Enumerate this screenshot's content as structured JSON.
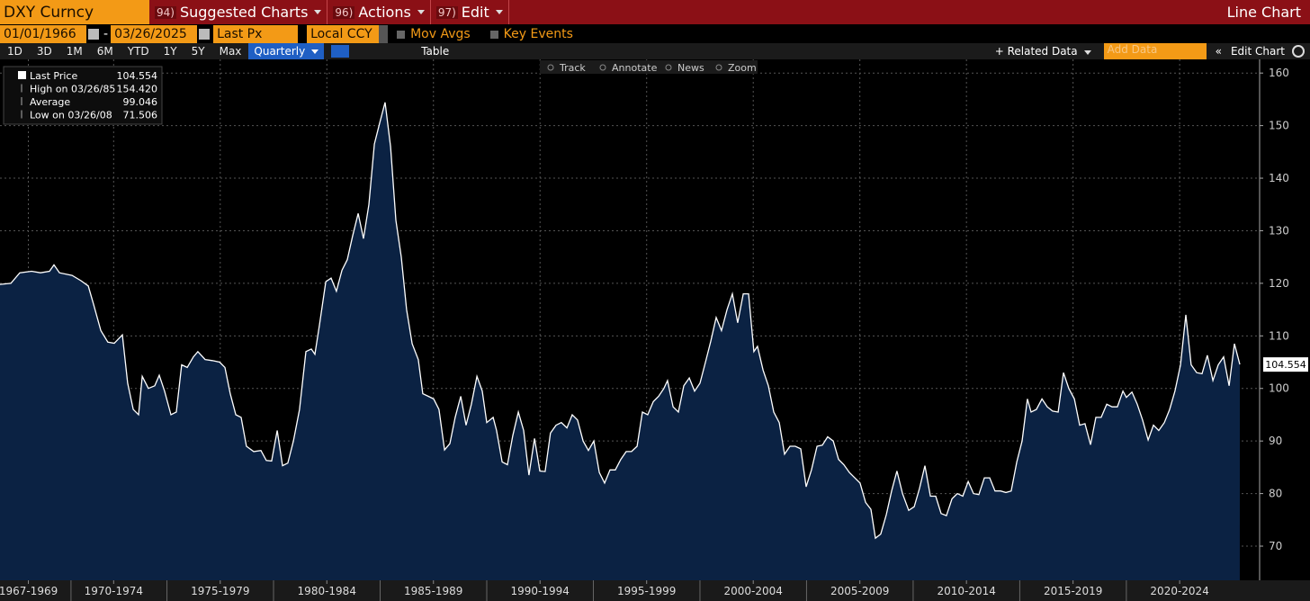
{
  "toolbar": {
    "ticker": "DXY Curncy",
    "menus": [
      {
        "code": "94)",
        "label": "Suggested Charts"
      },
      {
        "code": "96)",
        "label": "Actions"
      },
      {
        "code": "97)",
        "label": "Edit"
      }
    ],
    "view": "Line Chart"
  },
  "controls": {
    "start_date": "01/01/1966",
    "end_date": "03/26/2025",
    "field": "Last Px",
    "currency": "Local CCY",
    "options": [
      "Mov Avgs",
      "Key Events"
    ]
  },
  "periods": [
    "1D",
    "3D",
    "1M",
    "6M",
    "YTD",
    "1Y",
    "5Y",
    "Max"
  ],
  "frequency": "Quarterly",
  "table": "Table",
  "related": "Related Data",
  "add_data": "Add Data",
  "edit_chart": "Edit Chart",
  "tools": [
    "Track",
    "Annotate",
    "News",
    "Zoom"
  ],
  "chart_data": {
    "type": "line",
    "fill": "#0b2243",
    "grid": true,
    "stats": [
      {
        "label": "Last Price",
        "value": "104.554"
      },
      {
        "label": "High on 03/26/85",
        "value": "154.420"
      },
      {
        "label": "Average",
        "value": "99.046"
      },
      {
        "label": "Low on 03/26/08",
        "value": "71.506"
      }
    ],
    "xlim": [
      1967.17,
      2026.25
    ],
    "ylim": [
      63.5,
      162.6
    ],
    "yticks": [
      70,
      80,
      90,
      100,
      110,
      120,
      130,
      140,
      150,
      160
    ],
    "xticks": [
      {
        "value": 1968.5,
        "label": "1967-1969"
      },
      {
        "value": 1972.5,
        "label": "1970-1974"
      },
      {
        "value": 1977.5,
        "label": "1975-1979"
      },
      {
        "value": 1982.5,
        "label": "1980-1984"
      },
      {
        "value": 1987.5,
        "label": "1985-1989"
      },
      {
        "value": 1992.5,
        "label": "1990-1994"
      },
      {
        "value": 1997.5,
        "label": "1995-1999"
      },
      {
        "value": 2002.5,
        "label": "2000-2004"
      },
      {
        "value": 2007.5,
        "label": "2005-2009"
      },
      {
        "value": 2012.5,
        "label": "2010-2014"
      },
      {
        "value": 2017.5,
        "label": "2015-2019"
      },
      {
        "value": 2022.5,
        "label": "2020-2024"
      }
    ],
    "x": [
      1967.17,
      1967.68,
      1968.1,
      1968.65,
      1969.07,
      1969.49,
      1969.7,
      1969.96,
      1970.55,
      1970.97,
      1971.31,
      1971.56,
      1971.9,
      1972.23,
      1972.53,
      1972.91,
      1973.16,
      1973.42,
      1973.67,
      1973.84,
      1974.13,
      1974.43,
      1974.64,
      1974.89,
      1975.19,
      1975.44,
      1975.69,
      1975.95,
      1976.24,
      1976.45,
      1976.79,
      1977.13,
      1977.47,
      1977.72,
      1977.97,
      1978.23,
      1978.48,
      1978.73,
      1979.07,
      1979.41,
      1979.66,
      1979.91,
      1980.17,
      1980.42,
      1980.67,
      1980.93,
      1981.22,
      1981.52,
      1981.77,
      1981.94,
      1982.15,
      1982.45,
      1982.7,
      1982.95,
      1983.21,
      1983.46,
      1983.71,
      1983.97,
      1984.22,
      1984.47,
      1984.73,
      1984.98,
      1985.23,
      1985.49,
      1985.74,
      1985.99,
      1986.24,
      1986.5,
      1986.79,
      1987.0,
      1987.26,
      1987.51,
      1987.76,
      1988.02,
      1988.27,
      1988.52,
      1988.78,
      1989.03,
      1989.28,
      1989.54,
      1989.79,
      1990.0,
      1990.3,
      1990.46,
      1990.72,
      1990.97,
      1991.22,
      1991.48,
      1991.73,
      1991.98,
      1992.24,
      1992.49,
      1992.74,
      1992.99,
      1993.25,
      1993.5,
      1993.76,
      1994.01,
      1994.26,
      1994.52,
      1994.77,
      1995.02,
      1995.28,
      1995.53,
      1995.78,
      1996.03,
      1996.29,
      1996.54,
      1996.79,
      1997.05,
      1997.3,
      1997.55,
      1997.81,
      1998.06,
      1998.31,
      1998.48,
      1998.74,
      1998.99,
      1999.24,
      1999.5,
      1999.75,
      2000.0,
      2000.26,
      2000.51,
      2000.76,
      2001.01,
      2001.27,
      2001.52,
      2001.77,
      2002.03,
      2002.28,
      2002.53,
      2002.7,
      2002.96,
      2003.21,
      2003.46,
      2003.72,
      2003.97,
      2004.22,
      2004.47,
      2004.73,
      2004.98,
      2005.23,
      2005.49,
      2005.74,
      2005.99,
      2006.25,
      2006.5,
      2006.75,
      2007.01,
      2007.26,
      2007.51,
      2007.77,
      2008.02,
      2008.23,
      2008.48,
      2008.74,
      2008.99,
      2009.24,
      2009.5,
      2009.79,
      2010.05,
      2010.3,
      2010.55,
      2010.81,
      2011.06,
      2011.31,
      2011.56,
      2011.82,
      2012.07,
      2012.33,
      2012.58,
      2012.83,
      2013.08,
      2013.34,
      2013.59,
      2013.84,
      2014.1,
      2014.35,
      2014.6,
      2014.86,
      2015.11,
      2015.36,
      2015.53,
      2015.78,
      2016.04,
      2016.29,
      2016.54,
      2016.8,
      2017.05,
      2017.3,
      2017.56,
      2017.81,
      2018.06,
      2018.32,
      2018.57,
      2018.82,
      2019.08,
      2019.33,
      2019.58,
      2019.84,
      2020.0,
      2020.26,
      2020.51,
      2020.76,
      2021.02,
      2021.27,
      2021.52,
      2021.78,
      2022.03,
      2022.28,
      2022.54,
      2022.79,
      2023.04,
      2023.3,
      2023.55,
      2023.8,
      2024.06,
      2024.31,
      2024.56,
      2024.82,
      2025.07,
      2025.32
    ],
    "series": [
      {
        "name": "Last Price",
        "color": "#ffffff",
        "values": [
          119.8,
          120,
          122,
          122.3,
          122,
          122.3,
          123.5,
          122,
          121.5,
          120.5,
          119.5,
          116,
          111,
          108.8,
          108.6,
          110.2,
          101,
          96,
          95,
          102.3,
          100,
          100.5,
          102.5,
          99.5,
          95,
          95.5,
          104.5,
          104,
          106,
          107,
          105.5,
          105.3,
          105,
          104,
          99,
          95,
          94.5,
          89,
          88,
          88.2,
          86.3,
          86.2,
          92,
          85.3,
          85.8,
          90,
          96,
          107,
          107.5,
          106.5,
          112,
          120.3,
          121,
          118.5,
          122.5,
          124.5,
          129,
          133.3,
          128.5,
          135,
          146.5,
          150.5,
          154.42,
          146,
          132,
          125,
          115,
          108.5,
          105.5,
          99,
          98.5,
          98,
          96,
          88.3,
          89.5,
          94.5,
          98.5,
          93,
          97,
          102.3,
          99.5,
          93.5,
          94.5,
          92,
          86,
          85.5,
          91,
          95.5,
          92,
          83.5,
          90.5,
          84.3,
          84.2,
          91.5,
          93,
          93.5,
          92.5,
          95,
          94,
          90,
          88.2,
          90,
          84,
          82,
          84.5,
          84.5,
          86.5,
          88,
          88,
          89,
          95.5,
          95,
          97.5,
          98.5,
          100,
          101.5,
          96.5,
          95.5,
          100.5,
          102,
          99.5,
          101,
          105,
          109,
          113.5,
          111,
          115,
          118,
          112.5,
          118,
          118,
          107,
          108,
          103.5,
          100.5,
          95.5,
          93.5,
          87.5,
          89,
          89,
          88.5,
          81.3,
          84.5,
          89,
          89.2,
          90.8,
          90,
          86.5,
          85.5,
          84,
          83,
          82,
          78.3,
          77,
          71.506,
          72.3,
          76,
          80.5,
          84.3,
          80,
          76.8,
          77.5,
          81,
          85.3,
          79.5,
          79.5,
          76.2,
          75.8,
          79,
          80,
          79.5,
          82.3,
          80,
          79.8,
          83,
          83,
          80.5,
          80.5,
          80.2,
          80.5,
          86,
          90,
          98,
          95.5,
          96,
          98,
          96.5,
          95.7,
          95.5,
          103,
          100,
          98,
          93,
          93.3,
          89.3,
          94.5,
          94.5,
          97,
          96.5,
          96.5,
          99.5,
          98.3,
          99.3,
          97,
          94,
          90.2,
          93,
          92,
          93.5,
          96,
          99.5,
          104.5,
          114,
          104.5,
          103,
          102.8,
          106.3,
          101.5,
          104.5,
          106,
          100.5,
          108.5,
          104.554
        ]
      }
    ]
  }
}
